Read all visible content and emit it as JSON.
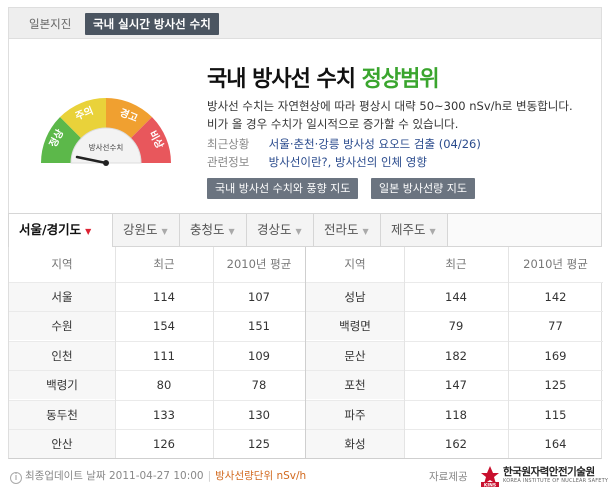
{
  "top_tabs": [
    {
      "label": "일본지진",
      "active": false
    },
    {
      "label": "국내 실시간 방사선 수치",
      "active": true
    }
  ],
  "summary": {
    "title_prefix": "국내 방사선 수치",
    "status": "정상범위",
    "gauge_labels": [
      "정상",
      "주의",
      "경고",
      "비상"
    ],
    "gauge_center_label": "방사선수치",
    "description": "방사선 수치는 자연현상에 따라 평상시 대략 50~300 nSv/h로 변동합니다. 비가 올 경우 수치가 일시적으로 증가할 수 있습니다.",
    "recent_label": "최근상황",
    "recent_value": "서울·춘천·강릉 방사성 요오드 검출 (04/26)",
    "related_label": "관련정보",
    "related_link1": "방사선이란?",
    "related_sep": ", ",
    "related_link2": "방사선의 인체 영향",
    "buttons": [
      "국내 방사선 수치와 풍향 지도",
      "일본 방사선량 지도"
    ],
    "colors": {
      "normal": "#5cb84a",
      "caution": "#e9d23a",
      "warning": "#f0a030",
      "emergency": "#e8575c",
      "status": "#3aa52e"
    }
  },
  "region_tabs": [
    {
      "label": "서울/경기도",
      "active": true
    },
    {
      "label": "강원도",
      "active": false
    },
    {
      "label": "충청도",
      "active": false
    },
    {
      "label": "경상도",
      "active": false
    },
    {
      "label": "전라도",
      "active": false
    },
    {
      "label": "제주도",
      "active": false
    }
  ],
  "table": {
    "headers": [
      "지역",
      "최근",
      "2010년 평균",
      "지역",
      "최근",
      "2010년 평균"
    ],
    "rows": [
      [
        "서울",
        "114",
        "107",
        "성남",
        "144",
        "142"
      ],
      [
        "수원",
        "154",
        "151",
        "백령면",
        "79",
        "77"
      ],
      [
        "인천",
        "111",
        "109",
        "문산",
        "182",
        "169"
      ],
      [
        "백령기",
        "80",
        "78",
        "포천",
        "147",
        "125"
      ],
      [
        "동두천",
        "133",
        "130",
        "파주",
        "118",
        "115"
      ],
      [
        "안산",
        "126",
        "125",
        "화성",
        "162",
        "164"
      ]
    ]
  },
  "footer": {
    "info_icon": "info-icon",
    "update_label": "최종업데이트 날짜",
    "update_value": "2011-04-27 10:00",
    "unit_label": "방사선량단위 nSv/h",
    "source_label": "자료제공",
    "org_name": "한국원자력안전기술원",
    "org_name_en": "KOREA INSTITUTE OF NUCLEAR SAFETY"
  }
}
